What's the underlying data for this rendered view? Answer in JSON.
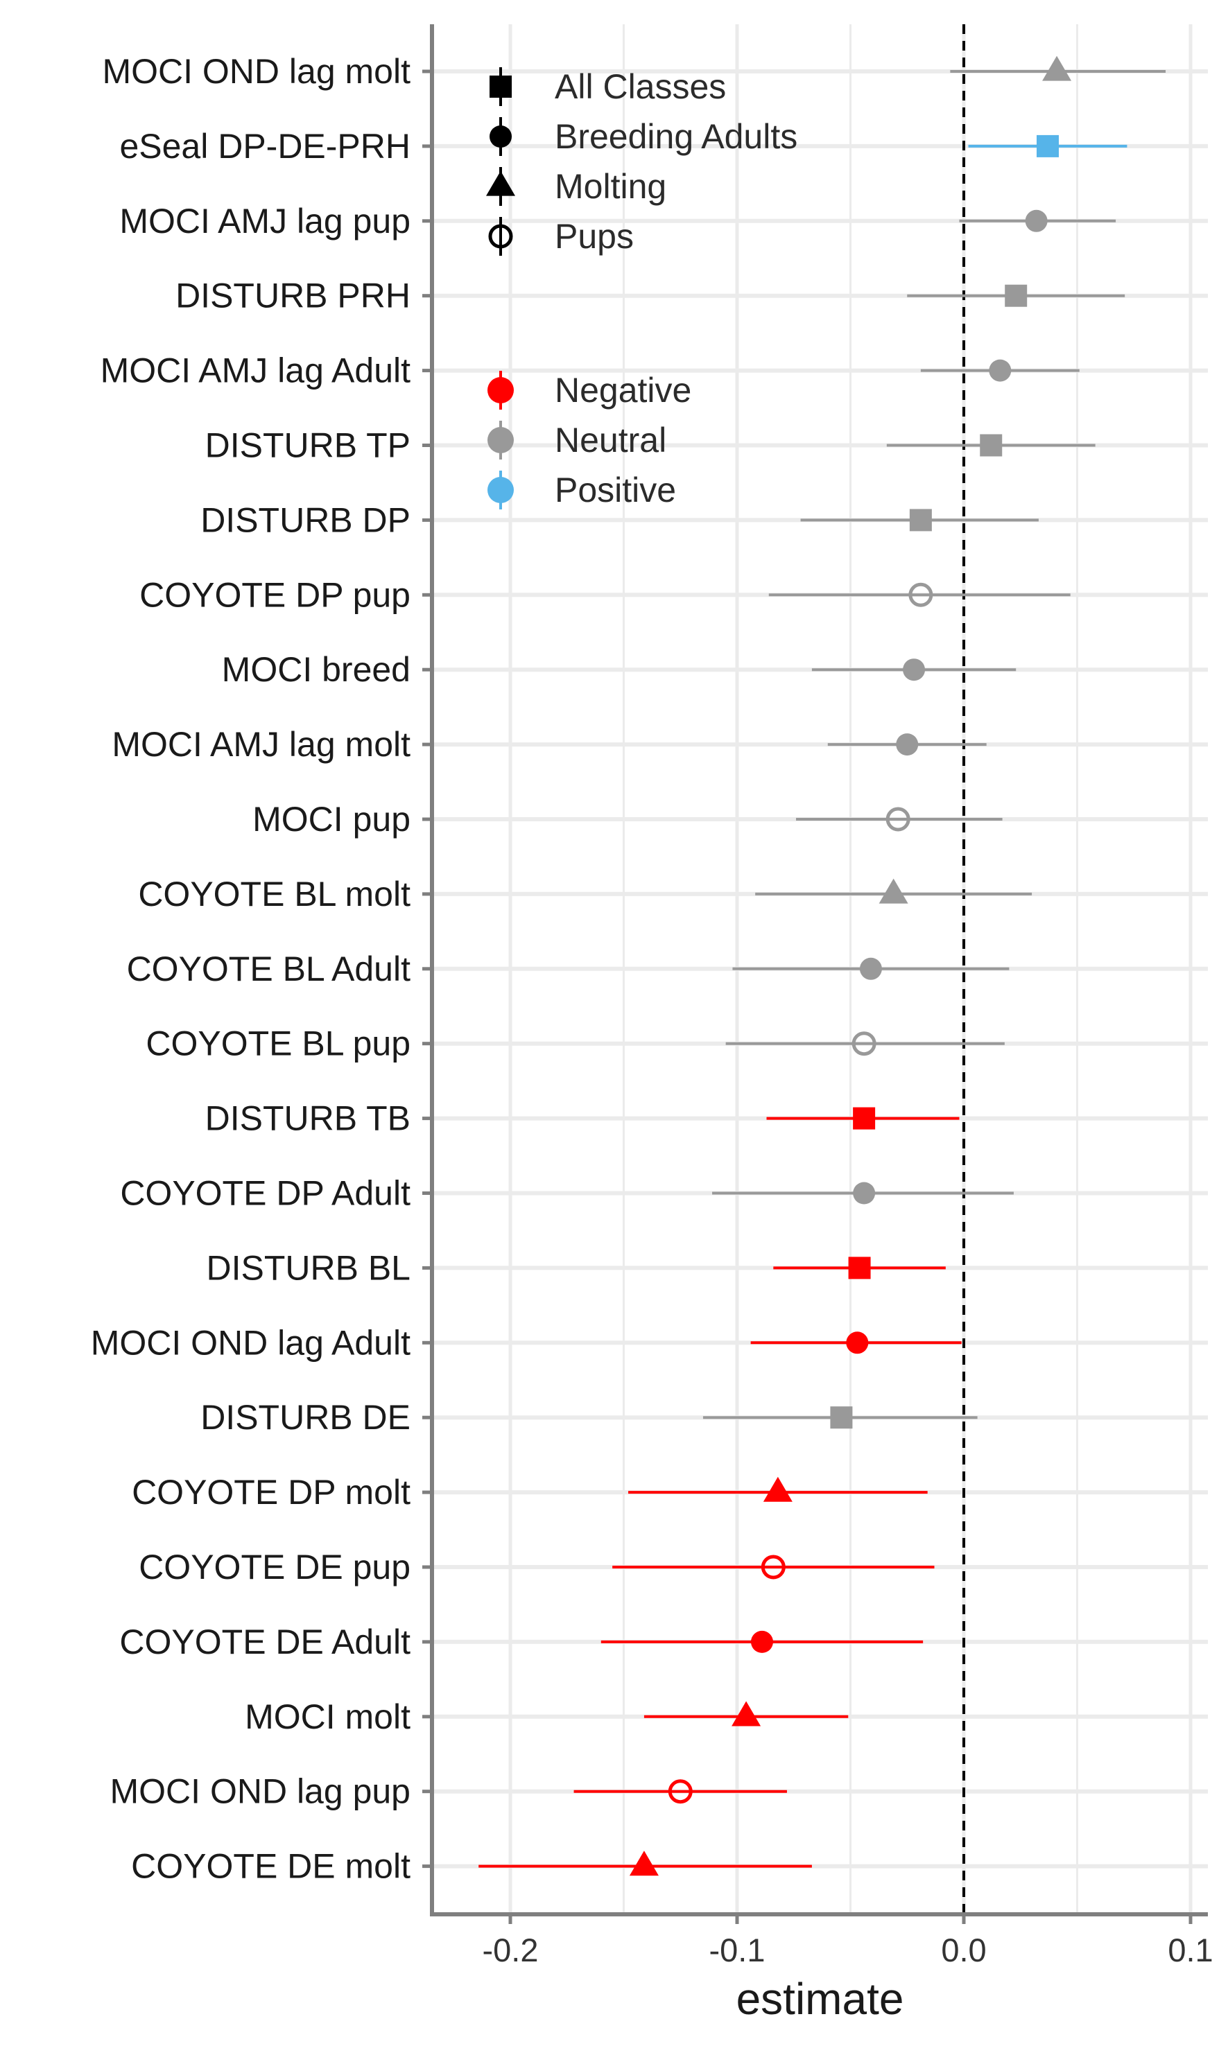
{
  "chart_data": {
    "type": "scatter",
    "subtype": "forest-plot",
    "xlabel": "estimate",
    "ylabel": "",
    "xlim": [
      -0.23,
      0.1
    ],
    "xticks": [
      -0.2,
      -0.1,
      0.0,
      0.1
    ],
    "xtick_labels": [
      "-0.2",
      "-0.1",
      "0.0",
      "0.1"
    ],
    "reference_line": {
      "x": 0,
      "style": "dashed"
    },
    "grid": true,
    "legend_placement": "top-left inside",
    "colors": {
      "Negative": "#ff0000",
      "Neutral": "#999999",
      "Positive": "#56b4e9",
      "axis": "#7f7f7f",
      "grid": "#ebebeb"
    },
    "legend_shape": {
      "items": [
        {
          "label": "All Classes",
          "shape": "square"
        },
        {
          "label": "Breeding Adults",
          "shape": "circle"
        },
        {
          "label": "Molting",
          "shape": "triangle"
        },
        {
          "label": "Pups",
          "shape": "open-circle"
        }
      ]
    },
    "legend_color": {
      "items": [
        {
          "label": "Negative",
          "color": "#ff0000"
        },
        {
          "label": "Neutral",
          "color": "#999999"
        },
        {
          "label": "Positive",
          "color": "#56b4e9"
        }
      ]
    },
    "rows": [
      {
        "label": "MOCI OND lag molt",
        "estimate": 0.041,
        "low": -0.006,
        "high": 0.089,
        "shape": "triangle",
        "effect": "Neutral"
      },
      {
        "label": "eSeal DP-DE-PRH",
        "estimate": 0.037,
        "low": 0.002,
        "high": 0.072,
        "shape": "square",
        "effect": "Positive"
      },
      {
        "label": "MOCI AMJ lag pup",
        "estimate": 0.032,
        "low": -0.002,
        "high": 0.067,
        "shape": "circle",
        "effect": "Neutral"
      },
      {
        "label": "DISTURB PRH",
        "estimate": 0.023,
        "low": -0.025,
        "high": 0.071,
        "shape": "square",
        "effect": "Neutral"
      },
      {
        "label": "MOCI AMJ lag Adult",
        "estimate": 0.016,
        "low": -0.019,
        "high": 0.051,
        "shape": "circle",
        "effect": "Neutral"
      },
      {
        "label": "DISTURB TP",
        "estimate": 0.012,
        "low": -0.034,
        "high": 0.058,
        "shape": "square",
        "effect": "Neutral"
      },
      {
        "label": "DISTURB DP",
        "estimate": -0.019,
        "low": -0.072,
        "high": 0.033,
        "shape": "square",
        "effect": "Neutral"
      },
      {
        "label": "COYOTE DP pup",
        "estimate": -0.019,
        "low": -0.086,
        "high": 0.047,
        "shape": "open-circle",
        "effect": "Neutral"
      },
      {
        "label": "MOCI breed",
        "estimate": -0.022,
        "low": -0.067,
        "high": 0.023,
        "shape": "circle",
        "effect": "Neutral"
      },
      {
        "label": "MOCI AMJ lag molt",
        "estimate": -0.025,
        "low": -0.06,
        "high": 0.01,
        "shape": "circle",
        "effect": "Neutral"
      },
      {
        "label": "MOCI pup",
        "estimate": -0.029,
        "low": -0.074,
        "high": 0.017,
        "shape": "open-circle",
        "effect": "Neutral"
      },
      {
        "label": "COYOTE BL molt",
        "estimate": -0.031,
        "low": -0.092,
        "high": 0.03,
        "shape": "triangle",
        "effect": "Neutral"
      },
      {
        "label": "COYOTE BL Adult",
        "estimate": -0.041,
        "low": -0.102,
        "high": 0.02,
        "shape": "circle",
        "effect": "Neutral"
      },
      {
        "label": "COYOTE BL pup",
        "estimate": -0.044,
        "low": -0.105,
        "high": 0.018,
        "shape": "open-circle",
        "effect": "Neutral"
      },
      {
        "label": "DISTURB TB",
        "estimate": -0.044,
        "low": -0.087,
        "high": -0.002,
        "shape": "square",
        "effect": "Negative"
      },
      {
        "label": "COYOTE DP Adult",
        "estimate": -0.044,
        "low": -0.111,
        "high": 0.022,
        "shape": "circle",
        "effect": "Neutral"
      },
      {
        "label": "DISTURB BL",
        "estimate": -0.046,
        "low": -0.084,
        "high": -0.008,
        "shape": "square",
        "effect": "Negative"
      },
      {
        "label": "MOCI OND lag Adult",
        "estimate": -0.047,
        "low": -0.094,
        "high": -0.001,
        "shape": "circle",
        "effect": "Negative"
      },
      {
        "label": "DISTURB DE",
        "estimate": -0.054,
        "low": -0.115,
        "high": 0.006,
        "shape": "square",
        "effect": "Neutral"
      },
      {
        "label": "COYOTE DP molt",
        "estimate": -0.082,
        "low": -0.148,
        "high": -0.016,
        "shape": "triangle",
        "effect": "Negative"
      },
      {
        "label": "COYOTE DE pup",
        "estimate": -0.084,
        "low": -0.155,
        "high": -0.013,
        "shape": "open-circle",
        "effect": "Negative"
      },
      {
        "label": "COYOTE DE Adult",
        "estimate": -0.089,
        "low": -0.16,
        "high": -0.018,
        "shape": "circle",
        "effect": "Negative"
      },
      {
        "label": "MOCI molt",
        "estimate": -0.096,
        "low": -0.141,
        "high": -0.051,
        "shape": "triangle",
        "effect": "Negative"
      },
      {
        "label": "MOCI OND lag pup",
        "estimate": -0.125,
        "low": -0.172,
        "high": -0.078,
        "shape": "open-circle",
        "effect": "Negative"
      },
      {
        "label": "COYOTE DE molt",
        "estimate": -0.141,
        "low": -0.214,
        "high": -0.067,
        "shape": "triangle",
        "effect": "Negative"
      }
    ]
  }
}
